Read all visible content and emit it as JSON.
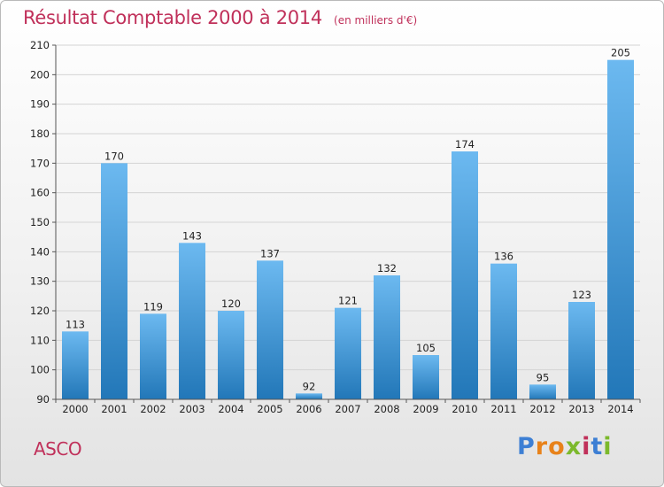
{
  "header": {
    "title": "Résultat Comptable 2000 à 2014",
    "subtitle": "(en milliers d'€)"
  },
  "footer": {
    "commune": "ASCO",
    "brand": "Proxiti"
  },
  "colors": {
    "title": "#c0305a",
    "bar_top": "#6cb9f0",
    "bar_bottom": "#2277b8"
  },
  "chart_data": {
    "type": "bar",
    "title": "Résultat Comptable 2000 à 2014",
    "subtitle": "(en milliers d'€)",
    "xlabel": "",
    "ylabel": "",
    "categories": [
      "2000",
      "2001",
      "2002",
      "2003",
      "2004",
      "2005",
      "2006",
      "2007",
      "2008",
      "2009",
      "2010",
      "2011",
      "2012",
      "2013",
      "2014"
    ],
    "values": [
      113,
      170,
      119,
      143,
      120,
      137,
      92,
      121,
      132,
      105,
      174,
      136,
      95,
      123,
      205
    ],
    "ylim": [
      90,
      210
    ],
    "yticks": [
      90,
      100,
      110,
      120,
      130,
      140,
      150,
      160,
      170,
      180,
      190,
      200,
      210
    ],
    "grid": true,
    "data_labels": true
  }
}
